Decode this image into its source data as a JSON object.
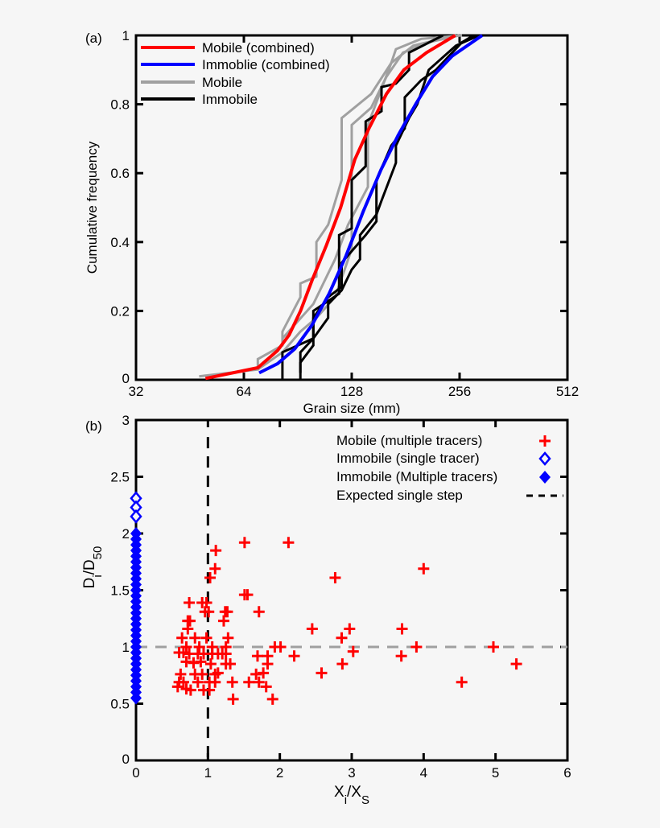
{
  "chart_data": [
    {
      "panel_label": "(a)",
      "type": "line",
      "xlabel": "Grain size (mm)",
      "ylabel": "Cumulative frequency",
      "x_scale": "log2",
      "xlim": [
        32,
        512
      ],
      "ylim": [
        0,
        1
      ],
      "xticks": [
        "32",
        "64",
        "128",
        "256",
        "512"
      ],
      "yticks": [
        "0",
        "0.2",
        "0.4",
        "0.6",
        "0.8",
        "1"
      ],
      "grid": false,
      "legend_position": "top-left",
      "series": [
        {
          "name": "Mobile (combined)",
          "color": "#ff0000",
          "legend": true,
          "points": [
            [
              50,
              0.004
            ],
            [
              70,
              0.035
            ],
            [
              79.5,
              0.085
            ],
            [
              85.6,
              0.13
            ],
            [
              92.1,
              0.2
            ],
            [
              99.3,
              0.29
            ],
            [
              108.7,
              0.39
            ],
            [
              119.2,
              0.5
            ],
            [
              130.6,
              0.64
            ],
            [
              143,
              0.73
            ],
            [
              160,
              0.83
            ],
            [
              179,
              0.9
            ],
            [
              207,
              0.95
            ],
            [
              249,
              1.0
            ]
          ]
        },
        {
          "name": "Immoblie (combined)",
          "color": "#0000ff",
          "legend": true,
          "points": [
            [
              70.6,
              0.02
            ],
            [
              79.5,
              0.047
            ],
            [
              88.8,
              0.09
            ],
            [
              99.3,
              0.16
            ],
            [
              110.7,
              0.25
            ],
            [
              123.4,
              0.36
            ],
            [
              138,
              0.49
            ],
            [
              154.5,
              0.61
            ],
            [
              172.5,
              0.71
            ],
            [
              193,
              0.8
            ],
            [
              215,
              0.88
            ],
            [
              244,
              0.94
            ],
            [
              296,
              1.0
            ]
          ]
        },
        {
          "name": "Mobile",
          "color": "#a0a0a0",
          "legend": true,
          "points": [
            [
              48,
              0.01
            ],
            [
              70,
              0.03
            ],
            [
              70,
              0.06
            ],
            [
              82,
              0.1
            ],
            [
              82,
              0.14
            ],
            [
              92,
              0.24
            ],
            [
              92,
              0.28
            ],
            [
              102,
              0.3
            ],
            [
              102,
              0.4
            ],
            [
              110,
              0.45
            ],
            [
              120,
              0.58
            ],
            [
              120,
              0.76
            ],
            [
              145,
              0.83
            ],
            [
              165,
              0.92
            ],
            [
              170,
              0.96
            ],
            [
              200,
              0.99
            ],
            [
              260,
              1.0
            ]
          ]
        },
        {
          "name": "",
          "color": "#a0a0a0",
          "legend": false,
          "points": [
            [
              70,
              0.03
            ],
            [
              82,
              0.08
            ],
            [
              92,
              0.14
            ],
            [
              102,
              0.18
            ],
            [
              115,
              0.24
            ],
            [
              128,
              0.38
            ],
            [
              128,
              0.74
            ],
            [
              145,
              0.79
            ],
            [
              160,
              0.88
            ],
            [
              178,
              0.95
            ],
            [
              210,
              0.98
            ],
            [
              255,
              1.0
            ]
          ]
        },
        {
          "name": "",
          "color": "#a0a0a0",
          "legend": false,
          "points": [
            [
              82,
              0.12
            ],
            [
              100,
              0.22
            ],
            [
              115,
              0.35
            ],
            [
              125,
              0.45
            ],
            [
              142,
              0.56
            ],
            [
              142,
              0.74
            ],
            [
              165,
              0.92
            ],
            [
              190,
              0.97
            ],
            [
              250,
              1.0
            ]
          ]
        },
        {
          "name": "Immobile",
          "color": "#000000",
          "legend": true,
          "points": [
            [
              82,
              0.0
            ],
            [
              82,
              0.08
            ],
            [
              100,
              0.12
            ],
            [
              100,
              0.2
            ],
            [
              118,
              0.25
            ],
            [
              118,
              0.42
            ],
            [
              128,
              0.44
            ],
            [
              128,
              0.58
            ],
            [
              140,
              0.62
            ],
            [
              140,
              0.75
            ],
            [
              155,
              0.78
            ],
            [
              155,
              0.85
            ],
            [
              170,
              0.86
            ],
            [
              185,
              0.9
            ],
            [
              185,
              0.95
            ],
            [
              230,
              1.0
            ]
          ]
        },
        {
          "name": "",
          "color": "#000000",
          "legend": false,
          "points": [
            [
              92,
              0.02
            ],
            [
              92,
              0.08
            ],
            [
              100,
              0.12
            ],
            [
              110,
              0.18
            ],
            [
              110,
              0.22
            ],
            [
              120,
              0.26
            ],
            [
              128,
              0.32
            ],
            [
              135,
              0.35
            ],
            [
              135,
              0.42
            ],
            [
              150,
              0.48
            ],
            [
              155,
              0.52
            ],
            [
              170,
              0.63
            ],
            [
              170,
              0.68
            ],
            [
              185,
              0.76
            ],
            [
              195,
              0.8
            ],
            [
              210,
              0.9
            ],
            [
              250,
              0.97
            ],
            [
              290,
              1.0
            ]
          ]
        },
        {
          "name": "",
          "color": "#000000",
          "legend": false,
          "points": [
            [
              92,
              0.0
            ],
            [
              92,
              0.05
            ],
            [
              100,
              0.1
            ],
            [
              100,
              0.18
            ],
            [
              110,
              0.24
            ],
            [
              120,
              0.27
            ],
            [
              120,
              0.34
            ],
            [
              140,
              0.42
            ],
            [
              150,
              0.46
            ],
            [
              150,
              0.58
            ],
            [
              165,
              0.68
            ],
            [
              180,
              0.73
            ],
            [
              180,
              0.82
            ],
            [
              200,
              0.87
            ],
            [
              220,
              0.9
            ],
            [
              260,
              0.98
            ],
            [
              280,
              1.0
            ]
          ]
        }
      ],
      "legend_order": [
        0,
        1,
        2,
        5
      ]
    },
    {
      "panel_label": "(b)",
      "type": "scatter",
      "xlabel": "X",
      "xlabel_sub": "i",
      "xlabel_mid": "/X",
      "xlabel_sub2": "S",
      "ylabel": "D",
      "ylabel_sub": "i",
      "ylabel_mid": "/D",
      "ylabel_sub2": "50",
      "xlim": [
        0,
        6
      ],
      "ylim": [
        0,
        3
      ],
      "xticks": [
        "0",
        "1",
        "2",
        "3",
        "4",
        "5",
        "6"
      ],
      "yticks": [
        "0",
        "0.5",
        "1",
        "1.5",
        "2",
        "2.5",
        "3"
      ],
      "grid": false,
      "legend_position": "top-right",
      "legend": [
        {
          "label": "Mobile (multiple tracers)",
          "marker": "plus",
          "color": "#ff0000"
        },
        {
          "label": "Immobile (single tracer)",
          "marker": "open-diamond",
          "color": "#0000ff"
        },
        {
          "label": "Immobile (Multiple tracers)",
          "marker": "filled-diamond",
          "color": "#0000ff"
        },
        {
          "label": "Expected single step",
          "marker": "dashed-line",
          "color": "#000000"
        }
      ],
      "reference_lines": [
        {
          "orientation": "vertical",
          "value": 1,
          "color": "#000000",
          "style": "dashed"
        },
        {
          "orientation": "horizontal",
          "value": 1,
          "color": "#a0a0a0",
          "style": "dashed"
        }
      ],
      "series": [
        {
          "name": "Mobile (multiple tracers)",
          "color": "#ff0000",
          "marker": "plus",
          "points": [
            [
              1.51,
              1.92
            ],
            [
              2.12,
              1.92
            ],
            [
              1.11,
              1.85
            ],
            [
              1.1,
              1.69
            ],
            [
              1.03,
              1.61
            ],
            [
              2.77,
              1.61
            ],
            [
              4.0,
              1.69
            ],
            [
              1.51,
              1.46
            ],
            [
              1.55,
              1.46
            ],
            [
              0.74,
              1.39
            ],
            [
              0.92,
              1.39
            ],
            [
              0.98,
              1.39
            ],
            [
              0.96,
              1.31
            ],
            [
              1.01,
              1.31
            ],
            [
              1.24,
              1.31
            ],
            [
              1.27,
              1.31
            ],
            [
              1.71,
              1.31
            ],
            [
              0.72,
              1.23
            ],
            [
              0.75,
              1.23
            ],
            [
              1.22,
              1.23
            ],
            [
              0.72,
              1.16
            ],
            [
              2.45,
              1.16
            ],
            [
              2.97,
              1.16
            ],
            [
              3.7,
              1.16
            ],
            [
              0.64,
              1.08
            ],
            [
              0.82,
              1.08
            ],
            [
              0.98,
              1.08
            ],
            [
              1.28,
              1.08
            ],
            [
              2.86,
              1.08
            ],
            [
              0.7,
              1.0
            ],
            [
              0.88,
              1.0
            ],
            [
              1.06,
              1.0
            ],
            [
              1.25,
              1.0
            ],
            [
              1.93,
              1.0
            ],
            [
              2.01,
              1.0
            ],
            [
              3.9,
              1.0
            ],
            [
              4.97,
              1.0
            ],
            [
              0.6,
              0.95
            ],
            [
              0.66,
              0.95
            ],
            [
              0.74,
              0.94
            ],
            [
              0.86,
              0.94
            ],
            [
              0.94,
              0.94
            ],
            [
              1.06,
              0.94
            ],
            [
              1.14,
              0.94
            ],
            [
              1.2,
              0.94
            ],
            [
              1.25,
              0.94
            ],
            [
              1.69,
              0.92
            ],
            [
              1.83,
              0.92
            ],
            [
              2.2,
              0.92
            ],
            [
              3.02,
              0.96
            ],
            [
              3.69,
              0.92
            ],
            [
              0.7,
              0.87
            ],
            [
              0.8,
              0.86
            ],
            [
              0.9,
              0.87
            ],
            [
              1.04,
              0.85
            ],
            [
              1.25,
              0.85
            ],
            [
              1.31,
              0.85
            ],
            [
              1.83,
              0.85
            ],
            [
              2.87,
              0.85
            ],
            [
              5.29,
              0.85
            ],
            [
              0.62,
              0.76
            ],
            [
              0.82,
              0.76
            ],
            [
              0.92,
              0.76
            ],
            [
              1.1,
              0.76
            ],
            [
              1.14,
              0.77
            ],
            [
              1.67,
              0.76
            ],
            [
              1.77,
              0.77
            ],
            [
              2.58,
              0.77
            ],
            [
              0.6,
              0.69
            ],
            [
              0.66,
              0.69
            ],
            [
              0.86,
              0.69
            ],
            [
              1.02,
              0.69
            ],
            [
              1.1,
              0.69
            ],
            [
              1.34,
              0.69
            ],
            [
              1.57,
              0.69
            ],
            [
              1.71,
              0.69
            ],
            [
              4.53,
              0.69
            ],
            [
              0.58,
              0.65
            ],
            [
              0.7,
              0.63
            ],
            [
              0.76,
              0.62
            ],
            [
              0.94,
              0.62
            ],
            [
              1.02,
              0.62
            ],
            [
              1.81,
              0.65
            ],
            [
              1.35,
              0.54
            ],
            [
              1.9,
              0.54
            ]
          ]
        },
        {
          "name": "Immobile (single tracer)",
          "color": "#0000ff",
          "marker": "open-diamond",
          "points": [
            [
              0,
              2.31
            ],
            [
              0,
              2.23
            ],
            [
              0,
              2.15
            ]
          ]
        },
        {
          "name": "Immobile (Multiple tracers)",
          "color": "#0000ff",
          "marker": "filled-diamond",
          "points": [
            [
              0,
              2.0
            ],
            [
              0,
              1.95
            ],
            [
              0,
              1.9
            ],
            [
              0,
              1.85
            ],
            [
              0,
              1.8
            ],
            [
              0,
              1.75
            ],
            [
              0,
              1.7
            ],
            [
              0,
              1.65
            ],
            [
              0,
              1.6
            ],
            [
              0,
              1.55
            ],
            [
              0,
              1.5
            ],
            [
              0,
              1.45
            ],
            [
              0,
              1.4
            ],
            [
              0,
              1.35
            ],
            [
              0,
              1.3
            ],
            [
              0,
              1.25
            ],
            [
              0,
              1.2
            ],
            [
              0,
              1.15
            ],
            [
              0,
              1.1
            ],
            [
              0,
              1.05
            ],
            [
              0,
              1.0
            ],
            [
              0,
              0.95
            ],
            [
              0,
              0.9
            ],
            [
              0,
              0.85
            ],
            [
              0,
              0.8
            ],
            [
              0,
              0.75
            ],
            [
              0,
              0.7
            ],
            [
              0,
              0.65
            ],
            [
              0,
              0.6
            ],
            [
              0,
              0.55
            ]
          ]
        }
      ]
    }
  ]
}
